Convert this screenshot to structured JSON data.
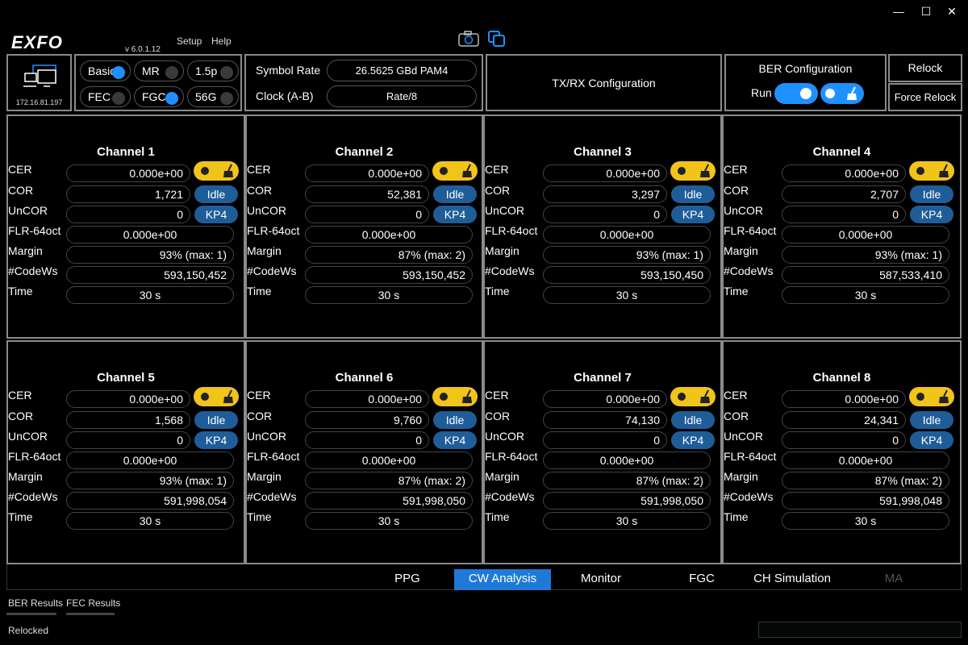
{
  "app": {
    "logo": "EXFO",
    "version": "v 6.0.1.12",
    "menu": [
      "Setup",
      "Help"
    ]
  },
  "device": {
    "ip": "172.16.81.197"
  },
  "modes": [
    {
      "label": "Basic",
      "on": true
    },
    {
      "label": "MR",
      "on": false
    },
    {
      "label": "1.5p",
      "on": false
    },
    {
      "label": "FEC",
      "on": false
    },
    {
      "label": "FGC",
      "on": true
    },
    {
      "label": "56G",
      "on": false
    }
  ],
  "symbol": {
    "label": "Symbol Rate",
    "value": "26.5625 GBd PAM4",
    "clock_label": "Clock (A-B)",
    "clock_value": "Rate/8"
  },
  "txrx": {
    "label": "TX/RX Configuration"
  },
  "ber": {
    "title": "BER Configuration",
    "run_label": "Run"
  },
  "relock": {
    "relock": "Relock",
    "force": "Force Relock"
  },
  "row_labels": [
    "CER",
    "COR",
    "UnCOR",
    "FLR-64oct",
    "Margin",
    "#CodeWs",
    "Time"
  ],
  "channels": [
    {
      "title": "Channel 1",
      "cer": "0.000e+00",
      "cor": "1,721",
      "cor_state": "Idle",
      "uncor": "0",
      "uncor_tag": "KP4",
      "flr": "0.000e+00",
      "margin": "93% (max: 1)",
      "codews": "593,150,452",
      "time": "30 s"
    },
    {
      "title": "Channel 2",
      "cer": "0.000e+00",
      "cor": "52,381",
      "cor_state": "Idle",
      "uncor": "0",
      "uncor_tag": "KP4",
      "flr": "0.000e+00",
      "margin": "87% (max: 2)",
      "codews": "593,150,452",
      "time": "30 s"
    },
    {
      "title": "Channel 3",
      "cer": "0.000e+00",
      "cor": "3,297",
      "cor_state": "Idle",
      "uncor": "0",
      "uncor_tag": "KP4",
      "flr": "0.000e+00",
      "margin": "93% (max: 1)",
      "codews": "593,150,450",
      "time": "30 s"
    },
    {
      "title": "Channel 4",
      "cer": "0.000e+00",
      "cor": "2,707",
      "cor_state": "Idle",
      "uncor": "0",
      "uncor_tag": "KP4",
      "flr": "0.000e+00",
      "margin": "93% (max: 1)",
      "codews": "587,533,410",
      "time": "30 s"
    },
    {
      "title": "Channel 5",
      "cer": "0.000e+00",
      "cor": "1,568",
      "cor_state": "Idle",
      "uncor": "0",
      "uncor_tag": "KP4",
      "flr": "0.000e+00",
      "margin": "93% (max: 1)",
      "codews": "591,998,054",
      "time": "30 s"
    },
    {
      "title": "Channel 6",
      "cer": "0.000e+00",
      "cor": "9,760",
      "cor_state": "Idle",
      "uncor": "0",
      "uncor_tag": "KP4",
      "flr": "0.000e+00",
      "margin": "87% (max: 2)",
      "codews": "591,998,050",
      "time": "30 s"
    },
    {
      "title": "Channel 7",
      "cer": "0.000e+00",
      "cor": "74,130",
      "cor_state": "Idle",
      "uncor": "0",
      "uncor_tag": "KP4",
      "flr": "0.000e+00",
      "margin": "87% (max: 2)",
      "codews": "591,998,050",
      "time": "30 s"
    },
    {
      "title": "Channel 8",
      "cer": "0.000e+00",
      "cor": "24,341",
      "cor_state": "Idle",
      "uncor": "0",
      "uncor_tag": "KP4",
      "flr": "0.000e+00",
      "margin": "87% (max: 2)",
      "codews": "591,998,048",
      "time": "30 s"
    }
  ],
  "tabs": [
    {
      "label": "PPG",
      "active": false
    },
    {
      "label": "CW Analysis",
      "active": true
    },
    {
      "label": "Monitor",
      "active": false
    },
    {
      "label": "FGC",
      "active": false
    },
    {
      "label": "CH Simulation",
      "active": false
    },
    {
      "label": "MA",
      "active": false,
      "disabled": true
    }
  ],
  "bottom_tabs": [
    "BER Results",
    "FEC Results"
  ],
  "status": "Relocked",
  "colors": {
    "accent": "#1e90ff",
    "toggle_yellow": "#f0c419",
    "tag_blue": "#1f5d99",
    "active_tab": "#1e7ad6"
  }
}
